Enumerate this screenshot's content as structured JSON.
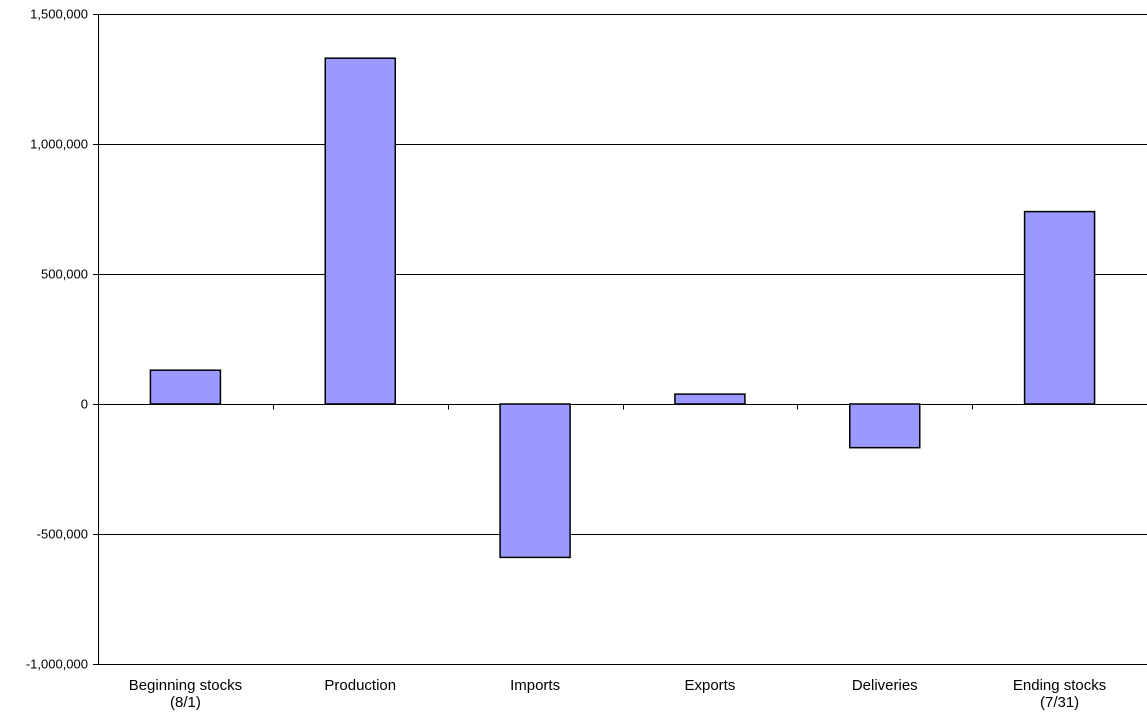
{
  "chart_data": {
    "type": "bar",
    "title": "",
    "xlabel": "",
    "ylabel": "",
    "categories": [
      [
        "Beginning stocks",
        "(8/1)"
      ],
      [
        "Production"
      ],
      [
        "Imports"
      ],
      [
        "Exports"
      ],
      [
        "Deliveries"
      ],
      [
        "Ending stocks",
        "(7/31)"
      ]
    ],
    "values": [
      130000,
      1330000,
      -590000,
      38000,
      -168000,
      740000
    ],
    "ylim": [
      -1000000,
      1500000
    ],
    "yticks": [
      -1000000,
      -500000,
      0,
      500000,
      1000000,
      1500000
    ],
    "ytick_labels": [
      "-1,000,000",
      "-500,000",
      "0",
      "500,000",
      "1,000,000",
      "1,500,000"
    ],
    "grid": true,
    "legend": "none",
    "bar_color": "#9999ff",
    "bar_edge_color": "#000000"
  }
}
